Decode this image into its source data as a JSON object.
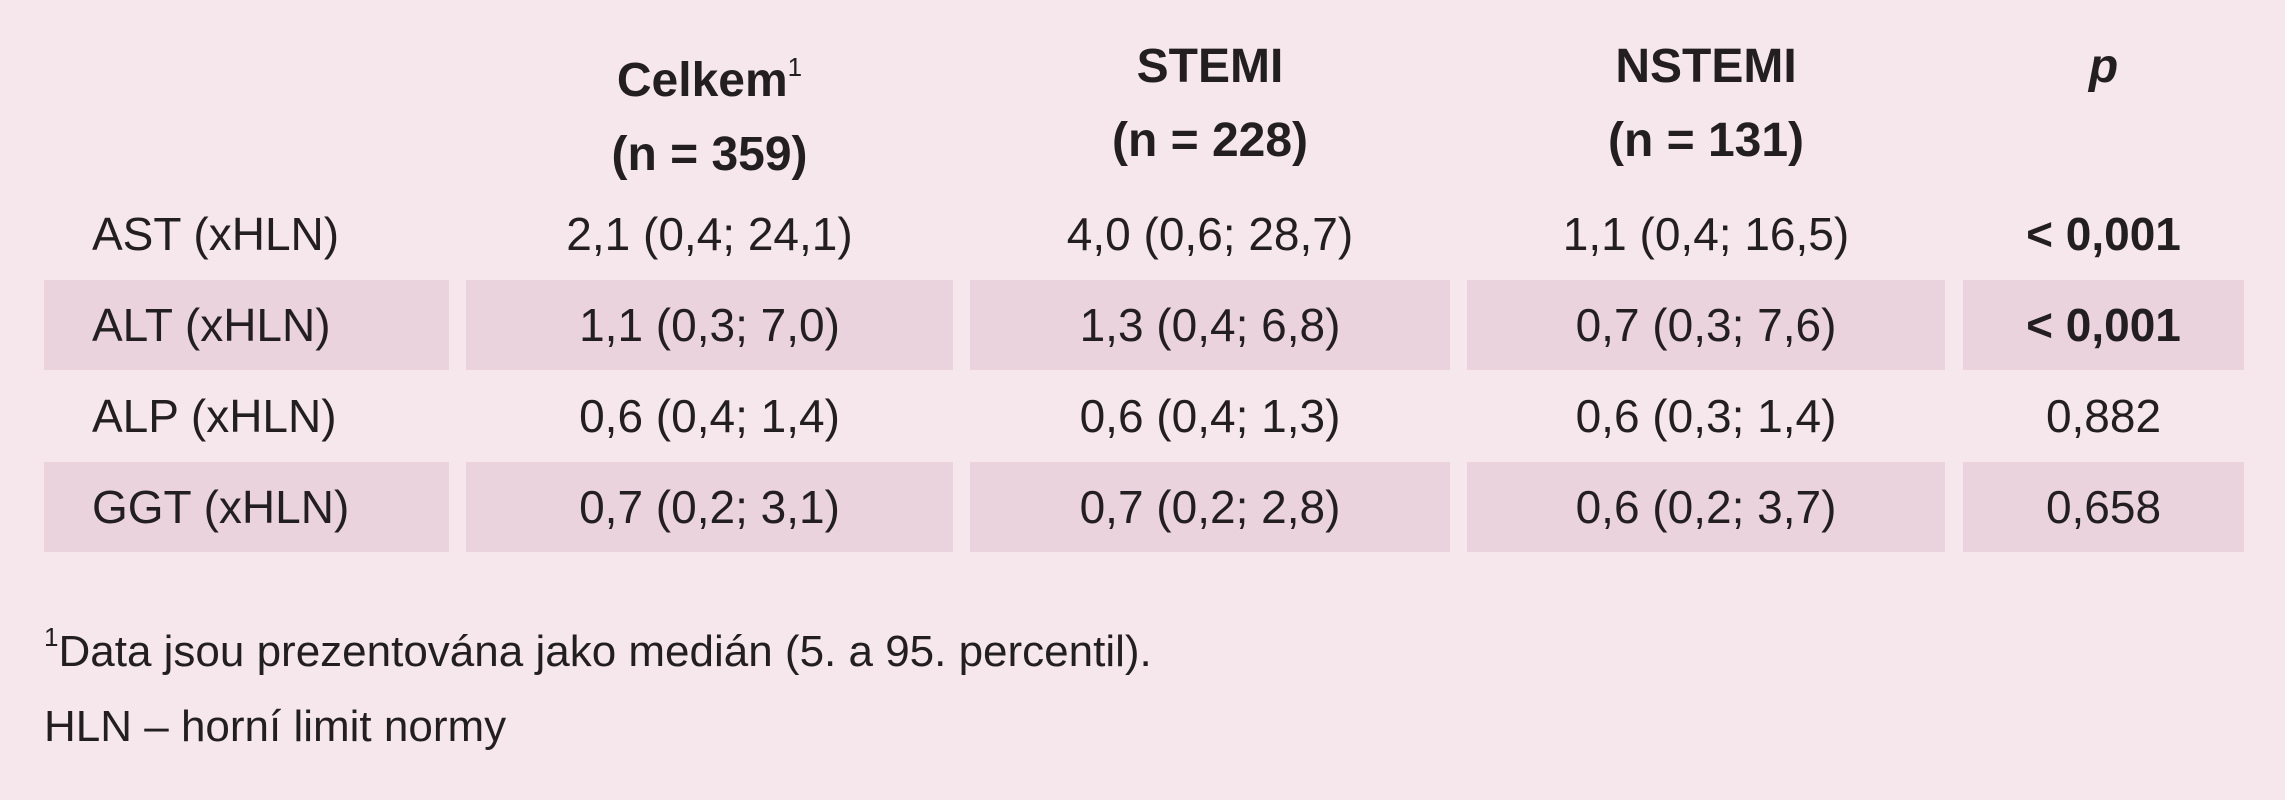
{
  "table": {
    "header": [
      {
        "label": "Celkem",
        "sup": "1",
        "n": "(n = 359)"
      },
      {
        "label": "STEMI",
        "n": "(n = 228)"
      },
      {
        "label": "NSTEMI",
        "n": "(n = 131)"
      },
      {
        "label": "p",
        "italic": true
      }
    ],
    "rows": [
      {
        "label": "AST (xHLN)",
        "cells": [
          "2,1 (0,4; 24,1)",
          "4,0 (0,6; 28,7)",
          "1,1 (0,4; 16,5)",
          "< 0,001"
        ],
        "bold_p": true,
        "shaded": false
      },
      {
        "label": "ALT (xHLN)",
        "cells": [
          "1,1 (0,3; 7,0)",
          "1,3 (0,4; 6,8)",
          "0,7 (0,3; 7,6)",
          "< 0,001"
        ],
        "bold_p": true,
        "shaded": true
      },
      {
        "label": "ALP (xHLN)",
        "cells": [
          "0,6 (0,4; 1,4)",
          "0,6 (0,4; 1,3)",
          "0,6 (0,3; 1,4)",
          "0,882"
        ],
        "bold_p": false,
        "shaded": false
      },
      {
        "label": "GGT (xHLN)",
        "cells": [
          "0,7 (0,2; 3,1)",
          "0,7 (0,2; 2,8)",
          "0,6 (0,2; 3,7)",
          "0,658"
        ],
        "bold_p": false,
        "shaded": true
      }
    ]
  },
  "footnotes": [
    {
      "sup": "1",
      "text": "Data jsou prezentována jako medián (5. a 95. percentil)."
    },
    {
      "text": "HLN – horní limit normy"
    }
  ]
}
